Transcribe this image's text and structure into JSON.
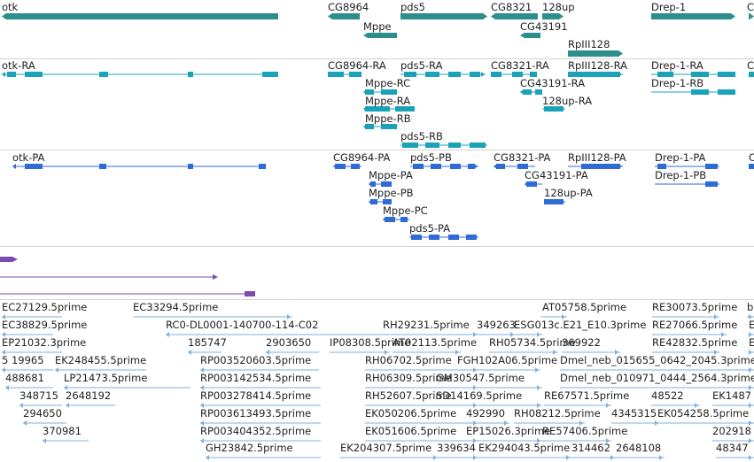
{
  "colors": {
    "gene": "#2b8f8c",
    "transcript": "#1aa3b8",
    "protein": "#2e6bd6",
    "ncrna": "#7a4bb0",
    "est": "#7fb2dd"
  },
  "tracks": {
    "genes": [
      {
        "label": "otk"
      },
      {
        "label": "CG8964"
      },
      {
        "label": "Mppe"
      },
      {
        "label": "pds5"
      },
      {
        "label": "CG8321"
      },
      {
        "label": "128up"
      },
      {
        "label": "CG43191"
      },
      {
        "label": "RpIII128"
      },
      {
        "label": "Drep-1"
      },
      {
        "label": "C"
      }
    ],
    "transcripts": [
      {
        "label": "otk-RA"
      },
      {
        "label": "CG8964-RA"
      },
      {
        "label": "pds5-RA"
      },
      {
        "label": "CG8321-RA"
      },
      {
        "label": "RpIII128-RA"
      },
      {
        "label": "Drep-1-RA"
      },
      {
        "label": "C"
      },
      {
        "label": "Mppe-RC"
      },
      {
        "label": "CG43191-RA"
      },
      {
        "label": "Drep-1-RB"
      },
      {
        "label": "Mppe-RA"
      },
      {
        "label": "128up-RA"
      },
      {
        "label": "Mppe-RB"
      },
      {
        "label": "pds5-RB"
      }
    ],
    "proteins": [
      {
        "label": "otk-PA"
      },
      {
        "label": "CG8964-PA"
      },
      {
        "label": "pds5-PB"
      },
      {
        "label": "CG8321-PA"
      },
      {
        "label": "RpIII128-PA"
      },
      {
        "label": "Drep-1-PA"
      },
      {
        "label": "C"
      },
      {
        "label": "Mppe-PA"
      },
      {
        "label": "CG43191-PA"
      },
      {
        "label": "Drep-1-PB"
      },
      {
        "label": "Mppe-PB"
      },
      {
        "label": "128up-PA"
      },
      {
        "label": "Mppe-PC"
      },
      {
        "label": "pds5-PA"
      }
    ],
    "ests": [
      {
        "label": "EC27129.5prime"
      },
      {
        "label": "EC33294.5prime"
      },
      {
        "label": "AT05758.5prime"
      },
      {
        "label": "RE30073.5prime"
      },
      {
        "label": "b"
      },
      {
        "label": "EC38829.5prime"
      },
      {
        "label": "RC0-DL0001-140700-114-C02"
      },
      {
        "label": "RH29231.5prime"
      },
      {
        "label": "349263"
      },
      {
        "label": "ESG013c.E21_E10.3prime"
      },
      {
        "label": "RE27066.5prime"
      },
      {
        "label": "E"
      },
      {
        "label": "EP21032.3prime"
      },
      {
        "label": "185747"
      },
      {
        "label": "2903650"
      },
      {
        "label": "IP08308.5prime"
      },
      {
        "label": "AT02113.5prime"
      },
      {
        "label": "RH05734.5prime"
      },
      {
        "label": "369922"
      },
      {
        "label": "RE42832.5prime"
      },
      {
        "label": "E"
      },
      {
        "label": "5 19965"
      },
      {
        "label": "EK248455.5prime"
      },
      {
        "label": "RP003520603.5prime"
      },
      {
        "label": "RH06702.5prime"
      },
      {
        "label": "FGH102A06.5prime"
      },
      {
        "label": "Dmel_neb_015655_0642_2045.3prime"
      },
      {
        "label": "488681"
      },
      {
        "label": "LP21473.5prime"
      },
      {
        "label": "RP003142534.5prime"
      },
      {
        "label": "RH06309.5prime"
      },
      {
        "label": "GM30547.5prime"
      },
      {
        "label": "Dmel_neb_010971_0444_2564.3prime"
      },
      {
        "label": "348715"
      },
      {
        "label": "2648192"
      },
      {
        "label": "RP003278414.5prime"
      },
      {
        "label": "RH52607.5prime"
      },
      {
        "label": "SD14169.5prime"
      },
      {
        "label": "RE67571.5prime"
      },
      {
        "label": "48522"
      },
      {
        "label": "EK1487"
      },
      {
        "label": "294650"
      },
      {
        "label": "RP003613493.5prime"
      },
      {
        "label": "EK050206.5prime"
      },
      {
        "label": "492990"
      },
      {
        "label": "RH08212.5prime"
      },
      {
        "label": "4345315"
      },
      {
        "label": "EK054258.5prime"
      },
      {
        "label": "370981"
      },
      {
        "label": "RP003404352.5prime"
      },
      {
        "label": "EK051606.5prime"
      },
      {
        "label": "EP15026.3prime"
      },
      {
        "label": "RE57406.5prime"
      },
      {
        "label": "202918"
      },
      {
        "label": "GH23842.5prime"
      },
      {
        "label": "EK204307.5prime"
      },
      {
        "label": "339634"
      },
      {
        "label": "EK294043.5prime"
      },
      {
        "label": "314462"
      },
      {
        "label": "2648108"
      },
      {
        "label": "48347"
      }
    ]
  }
}
